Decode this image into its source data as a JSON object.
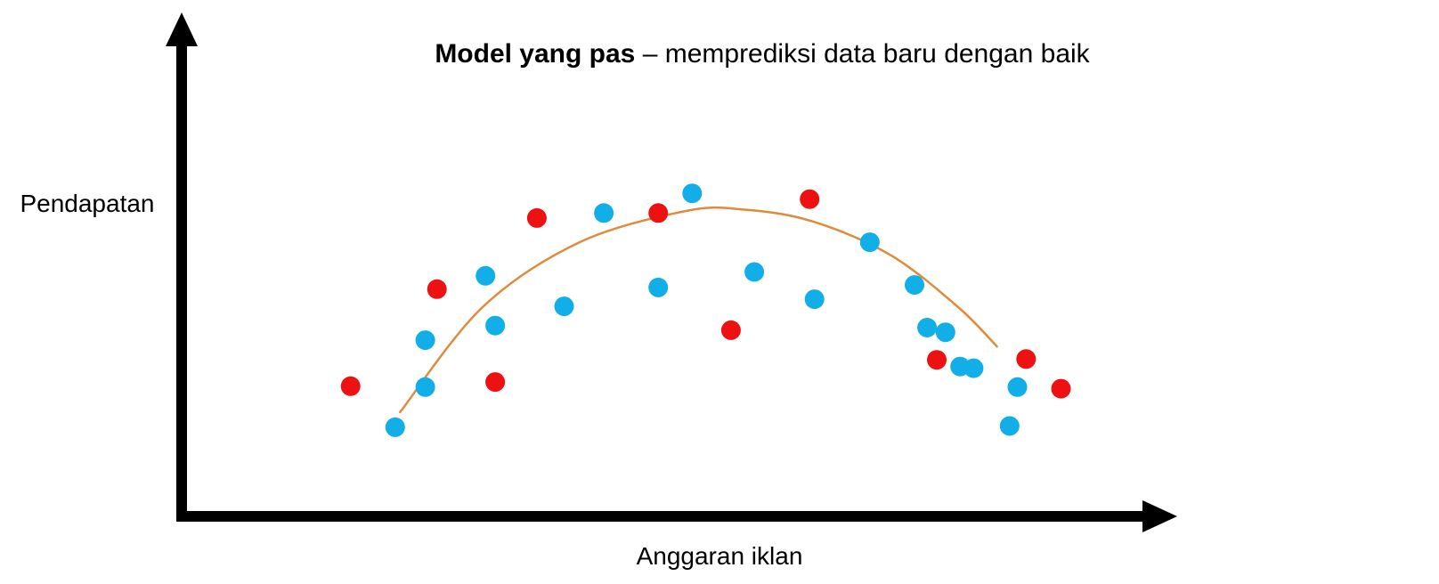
{
  "chart_data": {
    "type": "scatter",
    "title_bold": "Model yang pas",
    "title_rest": " – memprediksi data baru dengan baik",
    "xlabel": "Anggaran iklan",
    "ylabel": "Pendapatan",
    "ticks": "none",
    "grid": false,
    "xlim": [
      0,
      100
    ],
    "ylim": [
      0,
      100
    ],
    "colors": {
      "blue": "#12aee8",
      "red": "#ee1111",
      "curve": "#e08a3c",
      "axis": "#000000"
    },
    "series": [
      {
        "color": "blue",
        "points": [
          [
            22.0,
            21.3
          ],
          [
            25.1,
            30.9
          ],
          [
            25.1,
            42.1
          ],
          [
            31.3,
            57.5
          ],
          [
            32.3,
            45.6
          ],
          [
            39.4,
            50.2
          ],
          [
            43.5,
            72.5
          ],
          [
            49.1,
            54.7
          ],
          [
            52.6,
            77.2
          ],
          [
            59.0,
            58.4
          ],
          [
            65.2,
            51.9
          ],
          [
            70.9,
            65.5
          ],
          [
            75.5,
            55.3
          ],
          [
            76.8,
            45.1
          ],
          [
            78.7,
            44.0
          ],
          [
            80.2,
            35.8
          ],
          [
            81.6,
            35.4
          ],
          [
            85.3,
            21.6
          ],
          [
            86.1,
            30.9
          ]
        ]
      },
      {
        "color": "red",
        "points": [
          [
            17.4,
            31.1
          ],
          [
            26.3,
            54.3
          ],
          [
            32.3,
            32.1
          ],
          [
            36.6,
            71.3
          ],
          [
            49.1,
            72.5
          ],
          [
            56.6,
            44.5
          ],
          [
            64.7,
            75.8
          ],
          [
            77.8,
            37.4
          ],
          [
            87.0,
            37.6
          ],
          [
            90.6,
            30.5
          ]
        ]
      }
    ],
    "fit_curve": {
      "label": "",
      "points": [
        [
          22.5,
          24.9
        ],
        [
          31.0,
          50.0
        ],
        [
          41.0,
          65.5
        ],
        [
          52.0,
          73.0
        ],
        [
          58.0,
          73.3
        ],
        [
          65.0,
          70.5
        ],
        [
          73.0,
          62.5
        ],
        [
          80.0,
          50.0
        ],
        [
          84.0,
          40.6
        ]
      ]
    }
  }
}
